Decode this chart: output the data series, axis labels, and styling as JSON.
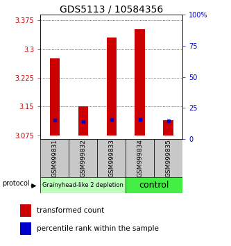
{
  "title": "GDS5113 / 10584356",
  "samples": [
    "GSM999831",
    "GSM999832",
    "GSM999833",
    "GSM999834",
    "GSM999835"
  ],
  "red_bar_tops": [
    3.275,
    3.15,
    3.33,
    3.352,
    3.115
  ],
  "red_bar_bottoms": [
    3.075,
    3.075,
    3.075,
    3.075,
    3.075
  ],
  "blue_pct": [
    15.0,
    14.0,
    15.5,
    15.5,
    14.5
  ],
  "ylim_left": [
    3.065,
    3.39
  ],
  "ylim_right": [
    0,
    100
  ],
  "yticks_left": [
    3.075,
    3.15,
    3.225,
    3.3,
    3.375
  ],
  "yticks_right": [
    0,
    25,
    50,
    75,
    100
  ],
  "group1_label": "Grainyhead-like 2 depletion",
  "group1_color": "#bbffbb",
  "group1_samples": 3,
  "group2_label": "control",
  "group2_color": "#44ee44",
  "group2_samples": 2,
  "protocol_label": "protocol",
  "legend_red": "transformed count",
  "legend_blue": "percentile rank within the sample",
  "bar_color": "#cc0000",
  "blue_color": "#0000cc",
  "bg_color": "#ffffff",
  "tick_color_left": "#cc0000",
  "tick_color_right": "#0000cc",
  "label_box_color": "#c8c8c8",
  "bar_width": 0.35,
  "title_fontsize": 10,
  "tick_fontsize": 7,
  "sample_fontsize": 6.5,
  "legend_fontsize": 7.5
}
